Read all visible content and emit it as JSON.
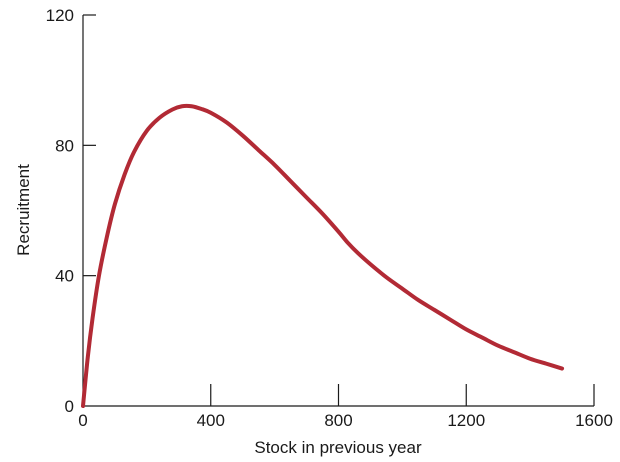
{
  "chart_data": {
    "type": "line",
    "title": "",
    "xlabel": "Stock in previous year",
    "ylabel": "Recruitment",
    "xlim": [
      0,
      1600
    ],
    "ylim": [
      0,
      120
    ],
    "x_ticks": [
      0,
      400,
      800,
      1200,
      1600
    ],
    "y_ticks": [
      0,
      40,
      80,
      120
    ],
    "x_tick_labels": [
      "0",
      "400",
      "800",
      "1200",
      "1600"
    ],
    "y_tick_labels": [
      "0",
      "40",
      "80",
      "120"
    ],
    "grid": false,
    "legend": "none",
    "series": [
      {
        "color": "#b22a35",
        "x": [
          0,
          15,
          30,
          50,
          75,
          100,
          130,
          160,
          200,
          240,
          280,
          310,
          340,
          370,
          400,
          450,
          500,
          550,
          600,
          650,
          700,
          750,
          800,
          830,
          860,
          900,
          950,
          1000,
          1050,
          1100,
          1150,
          1200,
          1250,
          1300,
          1350,
          1400,
          1450,
          1500
        ],
        "y": [
          0,
          15,
          27,
          40,
          52,
          62,
          71,
          78,
          84.5,
          88.5,
          91,
          92,
          92,
          91.2,
          90,
          87,
          83,
          78.5,
          74,
          69,
          64,
          59,
          53.5,
          50,
          47,
          43.5,
          39.5,
          36,
          32.5,
          29.5,
          26.5,
          23.5,
          21,
          18.5,
          16.5,
          14.5,
          13,
          11.5
        ]
      }
    ]
  }
}
